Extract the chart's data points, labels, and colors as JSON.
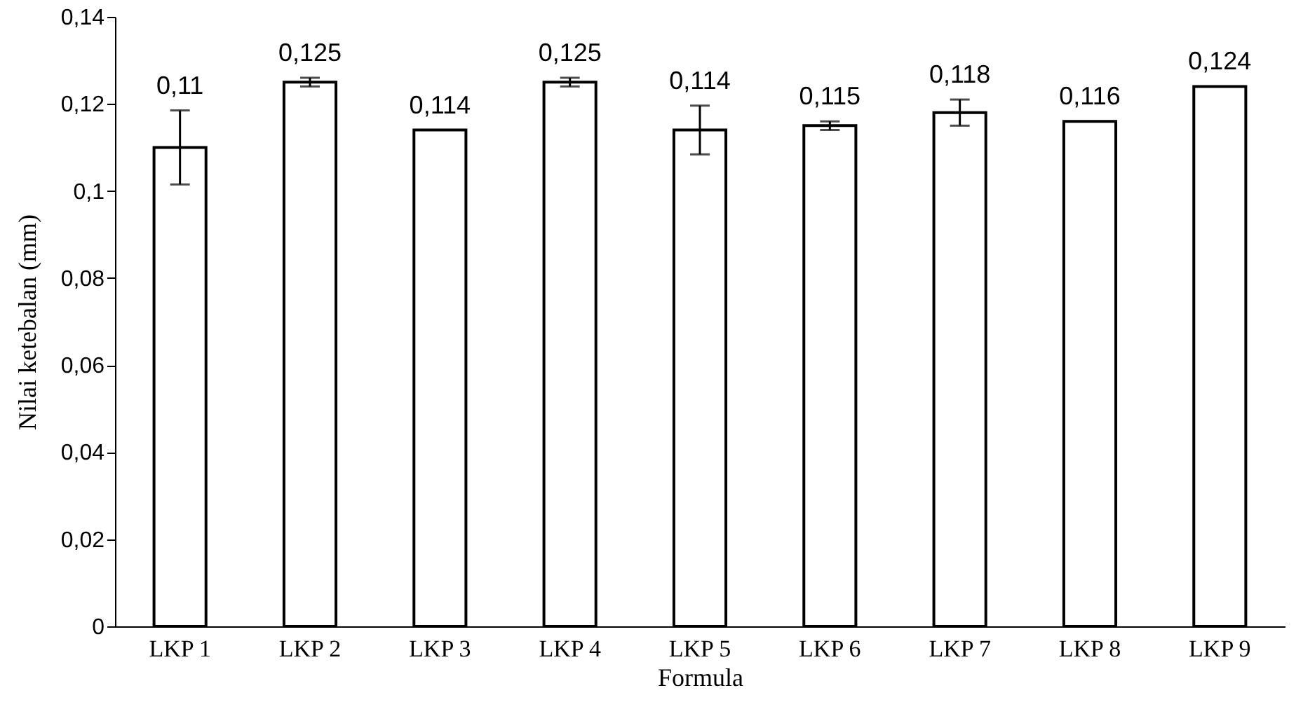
{
  "chart_data": {
    "type": "bar",
    "xlabel": "Formula",
    "ylabel": "Nilai ketebalan (mm)",
    "categories": [
      "LKP 1",
      "LKP 2",
      "LKP 3",
      "LKP 4",
      "LKP 5",
      "LKP 6",
      "LKP 7",
      "LKP 8",
      "LKP 9"
    ],
    "values": [
      0.11,
      0.125,
      0.114,
      0.125,
      0.114,
      0.115,
      0.118,
      0.116,
      0.124
    ],
    "errors": [
      0.0085,
      0.001,
      null,
      0.001,
      0.0056,
      0.001,
      0.003,
      null,
      null
    ],
    "value_labels": [
      "0,11",
      "0,125",
      "0,114",
      "0,125",
      "0,114",
      "0,115",
      "0,118",
      "0,116",
      "0,124"
    ],
    "color": "#ffffff",
    "ylim": [
      0,
      0.14
    ],
    "yticks": [
      {
        "value": 0,
        "label": "0"
      },
      {
        "value": 0.02,
        "label": "0,02"
      },
      {
        "value": 0.04,
        "label": "0,04"
      },
      {
        "value": 0.06,
        "label": "0,06"
      },
      {
        "value": 0.08,
        "label": "0,08"
      },
      {
        "value": 0.1,
        "label": "0,1"
      },
      {
        "value": 0.12,
        "label": "0,12"
      },
      {
        "value": 0.14,
        "label": "0,14"
      }
    ]
  }
}
